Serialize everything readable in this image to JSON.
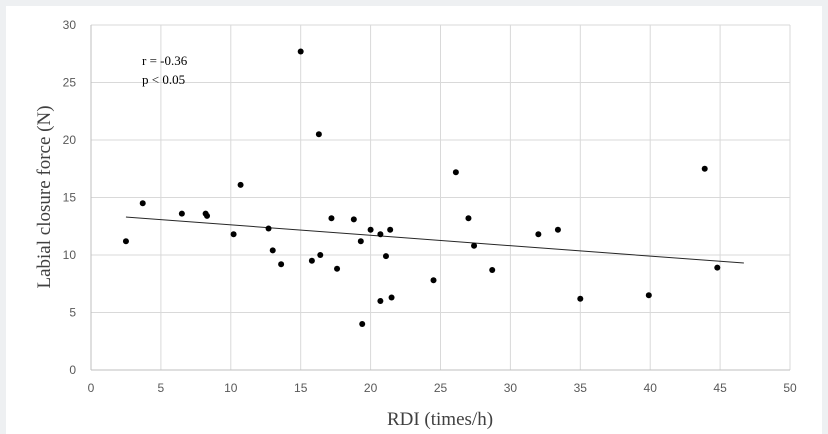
{
  "chart_data": {
    "type": "scatter",
    "xlabel": "RDI (times/h)",
    "ylabel": "Labial closure force (N)",
    "xlim": [
      0,
      50
    ],
    "ylim": [
      0,
      30
    ],
    "x_ticks": [
      "0",
      "5",
      "10",
      "15",
      "20",
      "25",
      "30",
      "35",
      "40",
      "45",
      "50"
    ],
    "y_ticks": [
      "0",
      "5",
      "10",
      "15",
      "20",
      "25",
      "30"
    ],
    "grid": true,
    "legend": "none",
    "annotations": [
      "r = -0.36",
      "p < 0.05"
    ],
    "marker_color": "#000000",
    "trendline": {
      "x": [
        2.5,
        46.7
      ],
      "y": [
        13.3,
        9.3
      ]
    },
    "points": [
      {
        "x": 2.5,
        "y": 11.2
      },
      {
        "x": 3.7,
        "y": 14.5
      },
      {
        "x": 6.5,
        "y": 13.6
      },
      {
        "x": 8.2,
        "y": 13.6
      },
      {
        "x": 8.3,
        "y": 13.4
      },
      {
        "x": 10.2,
        "y": 11.8
      },
      {
        "x": 10.7,
        "y": 16.1
      },
      {
        "x": 12.7,
        "y": 12.3
      },
      {
        "x": 13.0,
        "y": 10.4
      },
      {
        "x": 13.6,
        "y": 9.2
      },
      {
        "x": 15.0,
        "y": 27.7
      },
      {
        "x": 15.8,
        "y": 9.5
      },
      {
        "x": 16.3,
        "y": 20.5
      },
      {
        "x": 16.4,
        "y": 10.0
      },
      {
        "x": 17.2,
        "y": 13.2
      },
      {
        "x": 17.6,
        "y": 8.8
      },
      {
        "x": 18.8,
        "y": 13.1
      },
      {
        "x": 19.3,
        "y": 11.2
      },
      {
        "x": 19.4,
        "y": 4.0
      },
      {
        "x": 20.0,
        "y": 12.2
      },
      {
        "x": 20.7,
        "y": 11.8
      },
      {
        "x": 20.7,
        "y": 6.0
      },
      {
        "x": 21.1,
        "y": 9.9
      },
      {
        "x": 21.4,
        "y": 12.2
      },
      {
        "x": 21.5,
        "y": 6.3
      },
      {
        "x": 24.5,
        "y": 7.8
      },
      {
        "x": 26.1,
        "y": 17.2
      },
      {
        "x": 27.0,
        "y": 13.2
      },
      {
        "x": 27.4,
        "y": 10.8
      },
      {
        "x": 28.7,
        "y": 8.7
      },
      {
        "x": 32.0,
        "y": 11.8
      },
      {
        "x": 33.4,
        "y": 12.2
      },
      {
        "x": 35.0,
        "y": 6.2
      },
      {
        "x": 39.9,
        "y": 6.5
      },
      {
        "x": 43.9,
        "y": 17.5
      },
      {
        "x": 44.8,
        "y": 8.9
      }
    ]
  }
}
